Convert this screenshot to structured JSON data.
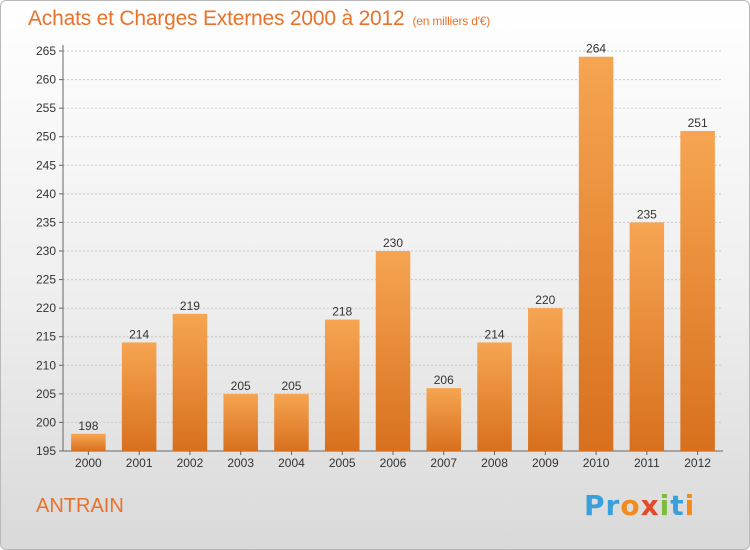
{
  "header": {
    "title": "Achats et Charges Externes 2000 à 2012",
    "subtitle": "(en milliers d'€)"
  },
  "footer": {
    "commune": "ANTRAIN",
    "logo_text": "Proxiti"
  },
  "colors": {
    "accent": "#e8722a",
    "bar_top": "#f6a552",
    "bar_bottom": "#d8701e"
  },
  "chart_data": {
    "type": "bar",
    "title": "Achats et Charges Externes 2000 à 2012",
    "subtitle": "(en milliers d'€)",
    "xlabel": "",
    "ylabel": "",
    "categories": [
      "2000",
      "2001",
      "2002",
      "2003",
      "2004",
      "2005",
      "2006",
      "2007",
      "2008",
      "2009",
      "2010",
      "2011",
      "2012"
    ],
    "values": [
      198,
      214,
      219,
      205,
      205,
      218,
      230,
      206,
      214,
      220,
      264,
      235,
      251
    ],
    "ylim": [
      195,
      265
    ],
    "yticks": [
      195,
      200,
      205,
      210,
      215,
      220,
      225,
      230,
      235,
      240,
      245,
      250,
      255,
      260,
      265
    ],
    "grid": true,
    "data_labels": true
  }
}
